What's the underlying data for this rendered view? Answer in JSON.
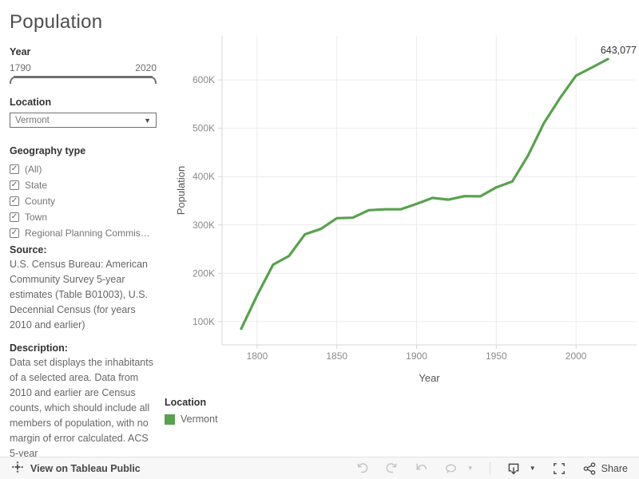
{
  "title": "Population",
  "filters": {
    "year": {
      "label": "Year",
      "min_label": "1790",
      "max_label": "2020"
    },
    "location": {
      "label": "Location",
      "value": "Vermont"
    },
    "geography": {
      "label": "Geography type",
      "options": [
        {
          "label": "(All)",
          "checked": true
        },
        {
          "label": "State",
          "checked": true
        },
        {
          "label": "County",
          "checked": true
        },
        {
          "label": "Town",
          "checked": true
        },
        {
          "label": "Regional Planning Commis…",
          "checked": true
        }
      ]
    }
  },
  "source": {
    "label": "Source:",
    "text": "U.S. Census Bureau: American Community Survey 5-year estimates (Table B01003), U.S. Decennial Census (for years 2010 and earlier)"
  },
  "description": {
    "label": "Description:",
    "text": "Data set displays the inhabitants of a selected area. Data from 2010 and earlier are Census counts, which should include all members of population, with no margin of error calculated. ACS 5-year"
  },
  "chart_data": {
    "type": "line",
    "title": "",
    "xlabel": "Year",
    "ylabel": "Population",
    "x": [
      1790,
      1800,
      1810,
      1820,
      1830,
      1840,
      1850,
      1860,
      1870,
      1880,
      1890,
      1900,
      1910,
      1920,
      1930,
      1940,
      1950,
      1960,
      1970,
      1980,
      1990,
      2000,
      2010,
      2020
    ],
    "series": [
      {
        "name": "Vermont",
        "color": "#59a14f",
        "values": [
          85425,
          154465,
          217895,
          235981,
          280652,
          291948,
          314120,
          315098,
          330551,
          332286,
          332422,
          343641,
          355956,
          352428,
          359611,
          359231,
          377747,
          389881,
          444330,
          511456,
          562758,
          608827,
          625741,
          643077
        ]
      }
    ],
    "end_label": "643,077",
    "xticks": [
      1800,
      1850,
      1900,
      1950,
      2000
    ],
    "yticks": [
      100000,
      200000,
      300000,
      400000,
      500000,
      600000
    ],
    "ytick_labels": [
      "100K",
      "200K",
      "300K",
      "400K",
      "500K",
      "600K"
    ],
    "xlim": [
      1778,
      2038
    ],
    "ylim": [
      52000,
      691000
    ],
    "grid": true,
    "legend_position": "bottom-left"
  },
  "legend": {
    "title": "Location",
    "items": [
      {
        "label": "Vermont",
        "color": "#59a14f"
      }
    ]
  },
  "toolbar": {
    "view_label": "View on Tableau Public",
    "share_label": "Share",
    "icons": [
      "tableau-logo",
      "undo",
      "redo",
      "revert",
      "refresh",
      "caret-down",
      "download",
      "caret-down",
      "fullscreen",
      "share"
    ]
  },
  "colors": {
    "accent_green": "#59a14f",
    "grid": "#ececec",
    "axis": "#d7d7d7",
    "tick_text": "#8a8a8a"
  }
}
